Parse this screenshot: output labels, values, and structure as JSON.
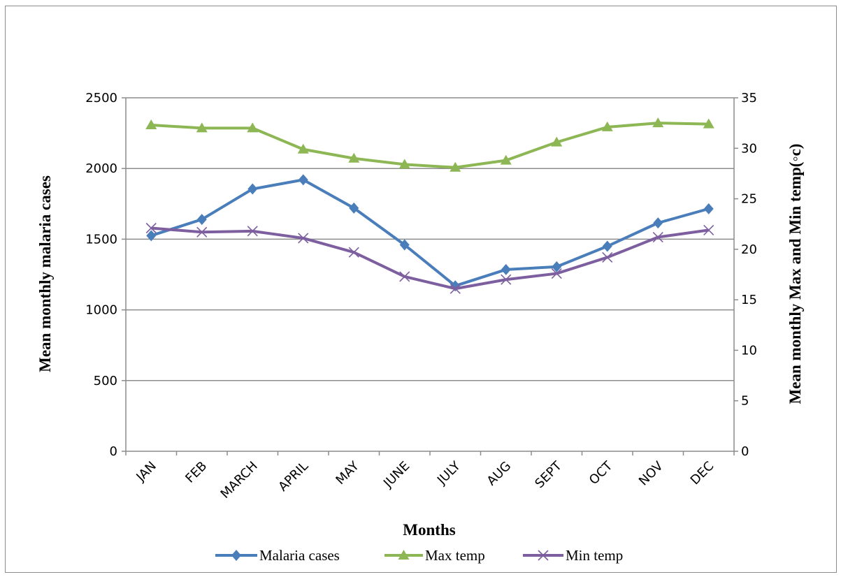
{
  "chart_data": {
    "type": "line",
    "categories": [
      "JAN",
      "FEB",
      "MARCH",
      "APRIL",
      "MAY",
      "JUNE",
      "JULY",
      "AUG",
      "SEPT",
      "OCT",
      "NOV",
      "DEC"
    ],
    "xlabel": "Months",
    "ylabel": "Mean monthly  malaria cases",
    "y2label": "Mean monthly Max and Min temp(◦c)",
    "ylim": [
      0,
      2500
    ],
    "y2lim": [
      0,
      35
    ],
    "yticks": [
      0,
      500,
      1000,
      1500,
      2000,
      2500
    ],
    "y2ticks": [
      0,
      5,
      10,
      15,
      20,
      25,
      30,
      35
    ],
    "grid": "horizontal",
    "legend_position": "bottom",
    "series": [
      {
        "name": "Malaria cases",
        "axis": "left",
        "color": "#4a7ebb",
        "marker": "diamond",
        "values": [
          1525,
          1640,
          1855,
          1920,
          1720,
          1460,
          1170,
          1285,
          1305,
          1450,
          1615,
          1715
        ]
      },
      {
        "name": "Max temp",
        "axis": "right",
        "color": "#8db654",
        "marker": "triangle",
        "values": [
          32.3,
          32.0,
          32.0,
          29.9,
          29.0,
          28.4,
          28.1,
          28.8,
          30.6,
          32.1,
          32.5,
          32.4
        ]
      },
      {
        "name": "Min temp",
        "axis": "right",
        "color": "#7d5fa0",
        "marker": "x",
        "values": [
          22.1,
          21.7,
          21.8,
          21.1,
          19.7,
          17.3,
          16.1,
          17.0,
          17.6,
          19.2,
          21.2,
          21.9
        ]
      }
    ]
  }
}
